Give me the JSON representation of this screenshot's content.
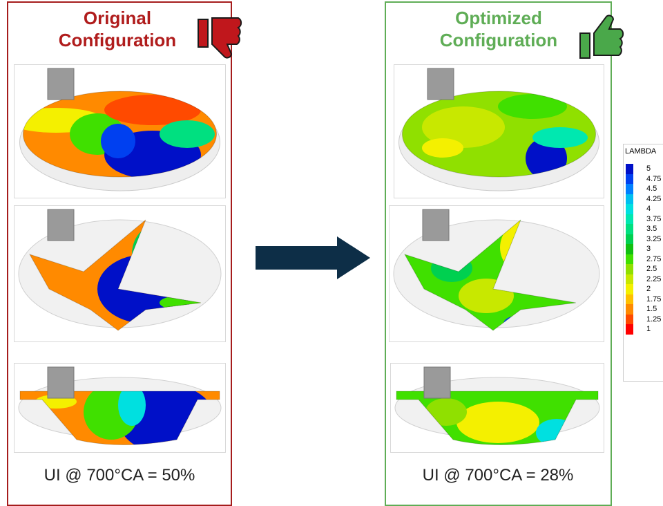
{
  "left": {
    "title": "Original Configuration",
    "caption": "UI @ 700°CA = 50%"
  },
  "right": {
    "title": "Optimized Configuration",
    "caption": "UI @ 700°CA = 28%"
  },
  "legend": {
    "title": "LAMBDA",
    "levels": [
      {
        "label": "5",
        "color": "#0010c8"
      },
      {
        "label": "4.75",
        "color": "#0040f0"
      },
      {
        "label": "4.5",
        "color": "#0080ff"
      },
      {
        "label": "4.25",
        "color": "#00bff0"
      },
      {
        "label": "4",
        "color": "#00e0e0"
      },
      {
        "label": "3.75",
        "color": "#00e8b0"
      },
      {
        "label": "3.5",
        "color": "#00e080"
      },
      {
        "label": "3.25",
        "color": "#00d050"
      },
      {
        "label": "3",
        "color": "#10c010"
      },
      {
        "label": "2.75",
        "color": "#40e000"
      },
      {
        "label": "2.5",
        "color": "#90e000"
      },
      {
        "label": "2.25",
        "color": "#c8e800"
      },
      {
        "label": "2",
        "color": "#f4f000"
      },
      {
        "label": "1.75",
        "color": "#ffc000"
      },
      {
        "label": "1.5",
        "color": "#ff8a00"
      },
      {
        "label": "1.25",
        "color": "#ff4a00"
      },
      {
        "label": "1",
        "color": "#ff0000"
      }
    ]
  }
}
